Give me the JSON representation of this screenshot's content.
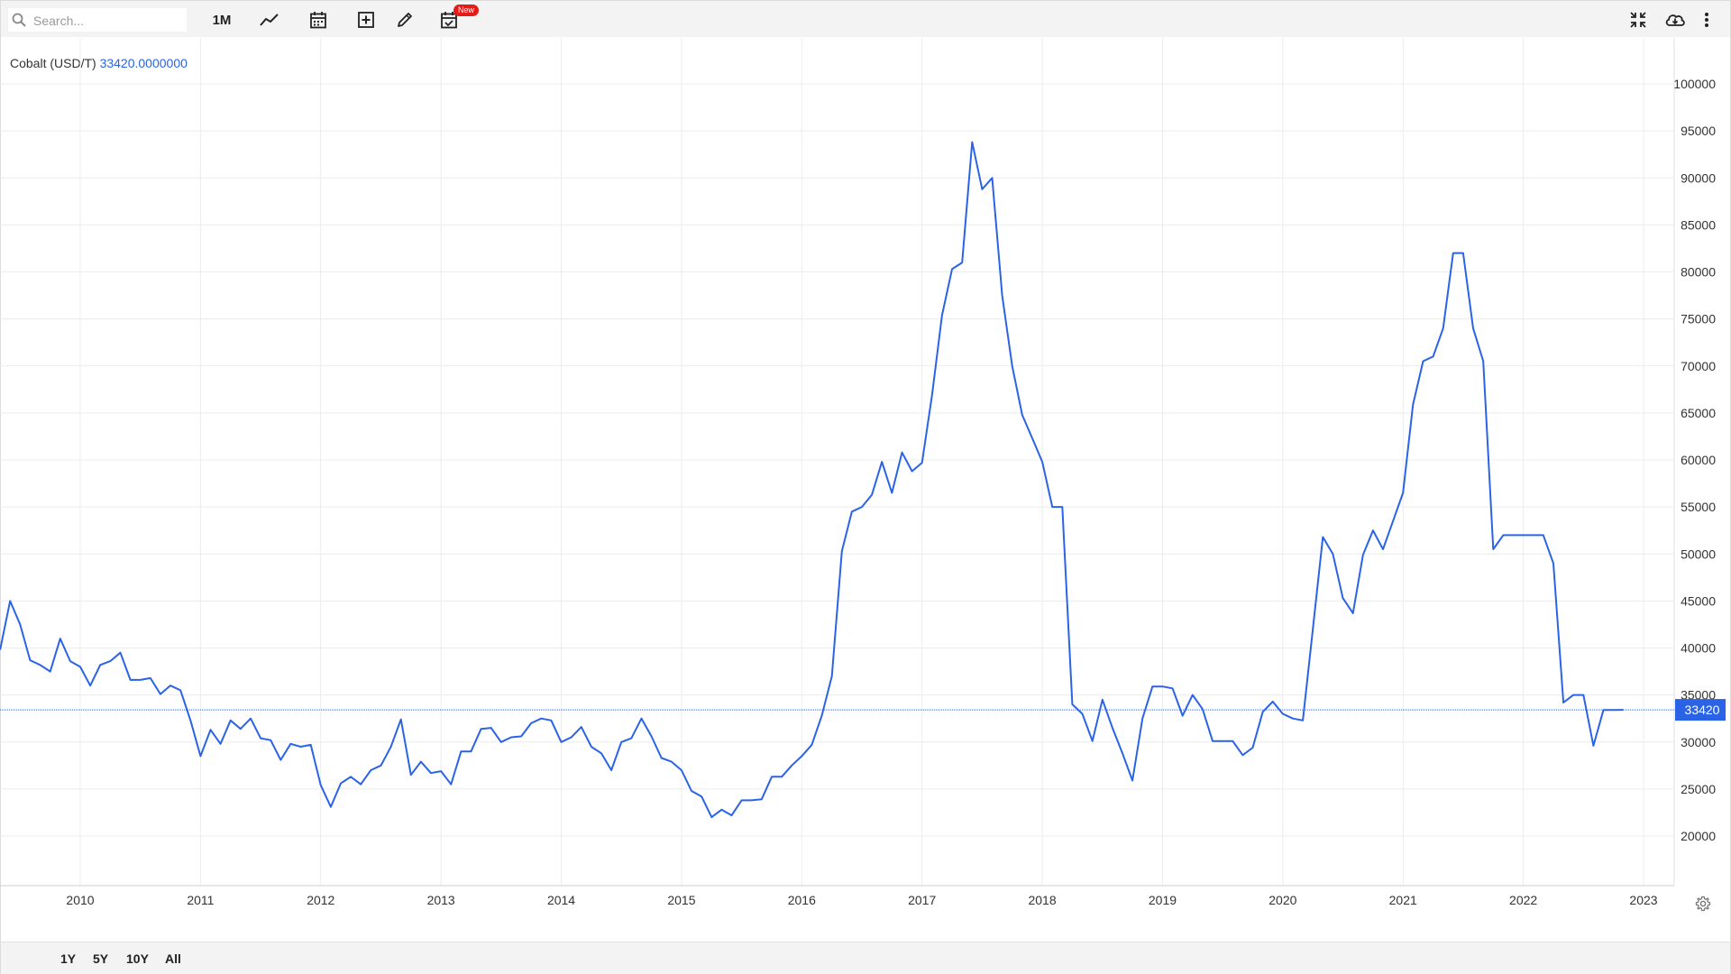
{
  "toolbar": {
    "search_placeholder": "Search...",
    "interval_label": "1M",
    "new_badge": "New"
  },
  "legend": {
    "name": "Cobalt (USD/T)",
    "value": "33420.0000000"
  },
  "last_value_label": "33420",
  "range_buttons": [
    "1Y",
    "5Y",
    "10Y",
    "All"
  ],
  "colors": {
    "line": "#2a63e6",
    "grid": "#ececec",
    "toolbar_bg": "#f3f3f3",
    "badge": "#e41b17"
  },
  "icons": [
    "search-icon",
    "line-chart-icon",
    "calendar-icon",
    "add-indicator-icon",
    "pencil-icon",
    "calendar-check-icon",
    "collapse-icon",
    "cloud-download-icon",
    "more-vertical-icon",
    "gear-icon"
  ],
  "chart_data": {
    "type": "line",
    "title": "",
    "xlabel": "",
    "ylabel": "",
    "series_name": "Cobalt (USD/T)",
    "x_ticks": [
      "2010",
      "2011",
      "2012",
      "2013",
      "2014",
      "2015",
      "2016",
      "2017",
      "2018",
      "2019",
      "2020",
      "2021",
      "2022",
      "2023"
    ],
    "y_ticks": [
      20000,
      25000,
      30000,
      35000,
      40000,
      45000,
      50000,
      55000,
      60000,
      65000,
      70000,
      75000,
      80000,
      85000,
      90000,
      95000,
      100000
    ],
    "ylim": [
      15000,
      100000
    ],
    "xlim": [
      "2009-05",
      "2023-06"
    ],
    "grid": true,
    "price_line": 33420,
    "x": [
      "2009-05",
      "2009-06",
      "2009-07",
      "2009-08",
      "2009-09",
      "2009-10",
      "2009-11",
      "2009-12",
      "2010-01",
      "2010-02",
      "2010-03",
      "2010-04",
      "2010-05",
      "2010-06",
      "2010-07",
      "2010-08",
      "2010-09",
      "2010-10",
      "2010-11",
      "2010-12",
      "2011-01",
      "2011-02",
      "2011-03",
      "2011-04",
      "2011-05",
      "2011-06",
      "2011-07",
      "2011-08",
      "2011-09",
      "2011-10",
      "2011-11",
      "2011-12",
      "2012-01",
      "2012-02",
      "2012-03",
      "2012-04",
      "2012-05",
      "2012-06",
      "2012-07",
      "2012-08",
      "2012-09",
      "2012-10",
      "2012-11",
      "2012-12",
      "2013-01",
      "2013-02",
      "2013-03",
      "2013-04",
      "2013-05",
      "2013-06",
      "2013-07",
      "2013-08",
      "2013-09",
      "2013-10",
      "2013-11",
      "2013-12",
      "2014-01",
      "2014-02",
      "2014-03",
      "2014-04",
      "2014-05",
      "2014-06",
      "2014-07",
      "2014-08",
      "2014-09",
      "2014-10",
      "2014-11",
      "2014-12",
      "2015-01",
      "2015-02",
      "2015-03",
      "2015-04",
      "2015-05",
      "2015-06",
      "2015-07",
      "2015-08",
      "2015-09",
      "2015-10",
      "2015-11",
      "2015-12",
      "2016-01",
      "2016-02",
      "2016-03",
      "2016-04",
      "2016-05",
      "2016-06",
      "2016-07",
      "2016-08",
      "2016-09",
      "2016-10",
      "2016-11",
      "2016-12",
      "2017-01",
      "2017-02",
      "2017-03",
      "2017-04",
      "2017-05",
      "2017-06",
      "2017-07",
      "2017-08",
      "2017-09",
      "2017-10",
      "2017-11",
      "2017-12",
      "2018-01",
      "2018-02",
      "2018-03",
      "2018-04",
      "2018-05",
      "2018-06",
      "2018-07",
      "2018-08",
      "2018-09",
      "2018-10",
      "2018-11",
      "2018-12",
      "2019-01",
      "2019-02",
      "2019-03",
      "2019-04",
      "2019-05",
      "2019-06",
      "2019-07",
      "2019-08",
      "2019-09",
      "2019-10",
      "2019-11",
      "2019-12",
      "2020-01",
      "2020-02",
      "2020-03",
      "2020-04",
      "2020-05",
      "2020-06",
      "2020-07",
      "2020-08",
      "2020-09",
      "2020-10",
      "2020-11",
      "2020-12",
      "2021-01",
      "2021-02",
      "2021-03",
      "2021-04",
      "2021-05",
      "2021-06",
      "2021-07",
      "2021-08",
      "2021-09",
      "2021-10",
      "2021-11",
      "2021-12",
      "2022-01",
      "2022-02",
      "2022-03",
      "2022-04",
      "2022-05",
      "2022-06",
      "2022-07",
      "2022-08",
      "2022-09",
      "2022-10",
      "2022-11"
    ],
    "y": [
      39800,
      45000,
      42500,
      38700,
      38200,
      37500,
      41000,
      38600,
      38000,
      36000,
      38200,
      38600,
      39500,
      36600,
      36600,
      36800,
      35100,
      36000,
      35500,
      32300,
      28500,
      31300,
      29800,
      32300,
      31400,
      32500,
      30400,
      30200,
      28100,
      29800,
      29500,
      29700,
      25400,
      23100,
      25600,
      26300,
      25500,
      27000,
      27500,
      29500,
      32400,
      26500,
      27900,
      26700,
      26900,
      25500,
      29000,
      29000,
      31400,
      31500,
      30000,
      30500,
      30600,
      32000,
      32500,
      32300,
      30000,
      30500,
      31600,
      29500,
      28800,
      27000,
      30000,
      30400,
      32500,
      30600,
      28300,
      27900,
      27000,
      24800,
      24200,
      22000,
      22800,
      22200,
      23800,
      23800,
      23900,
      26300,
      26300,
      27500,
      28500,
      29700,
      32800,
      37000,
      50300,
      54500,
      55000,
      56300,
      59800,
      56500,
      60800,
      58800,
      59700,
      66900,
      75400,
      80300,
      81000,
      93800,
      88800,
      90000,
      77500,
      70000,
      64800,
      62300,
      59800,
      55000,
      55000,
      34000,
      33000,
      30100,
      34500,
      31500,
      28800,
      25900,
      32500,
      35900,
      35900,
      35700,
      32800,
      35000,
      33500,
      30100,
      30100,
      30100,
      28600,
      29400,
      33200,
      34300,
      33000,
      32500,
      32300,
      42000,
      51800,
      50000,
      45300,
      43700,
      49900,
      52500,
      50500,
      53500,
      56500,
      65900,
      70500,
      71000,
      74000,
      82000,
      82000,
      74000,
      70500,
      50500,
      52000,
      52000,
      52000,
      52000,
      52000,
      49000,
      34200,
      35000,
      35000,
      29600,
      33400,
      33400,
      33420
    ]
  }
}
